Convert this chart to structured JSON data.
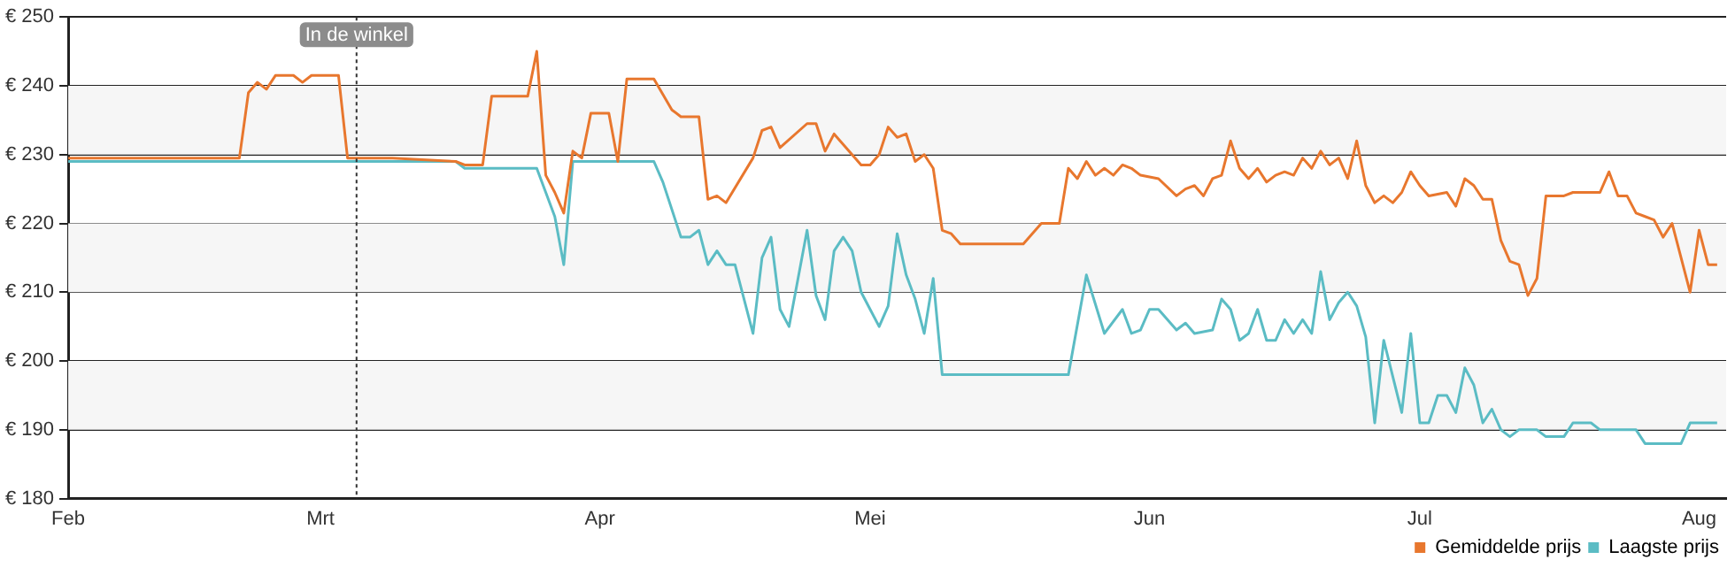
{
  "chart_data": {
    "type": "line",
    "xlim": [
      "--02-01",
      "--08-04"
    ],
    "xticks": [
      {
        "value": "--02-01",
        "label": "Feb"
      },
      {
        "value": "--03-01",
        "label": "Mrt"
      },
      {
        "value": "--04-01",
        "label": "Apr"
      },
      {
        "value": "--05-01",
        "label": "Mei"
      },
      {
        "value": "--06-01",
        "label": "Jun"
      },
      {
        "value": "--07-01",
        "label": "Jul"
      },
      {
        "value": "--08-01",
        "label": "Aug"
      }
    ],
    "ylim": [
      180,
      250
    ],
    "yticks": [
      {
        "value": 180,
        "label": "€ 180"
      },
      {
        "value": 190,
        "label": "€ 190"
      },
      {
        "value": 200,
        "label": "€ 200"
      },
      {
        "value": 210,
        "label": "€ 210"
      },
      {
        "value": 220,
        "label": "€ 220"
      },
      {
        "value": 230,
        "label": "€ 230"
      },
      {
        "value": 240,
        "label": "€ 240"
      },
      {
        "value": 250,
        "label": "€ 250"
      }
    ],
    "grid": "y",
    "legend": "bottom right",
    "marker": "none",
    "line_style": "solid",
    "ref_lines": [
      {
        "axis": "x",
        "value": "--03-05",
        "label": "In de winkel",
        "color": "#333333",
        "line_style": "dotted"
      }
    ],
    "series": [
      {
        "name": "Gemiddelde prijs",
        "color": "#e8772e",
        "x": [
          "--02-01",
          "--02-20",
          "--02-21",
          "--02-22",
          "--02-23",
          "--02-24",
          "--02-26",
          "--02-27",
          "--02-28",
          "--03-03",
          "--03-04",
          "--03-09",
          "--03-16",
          "--03-17",
          "--03-19",
          "--03-20",
          "--03-24",
          "--03-25",
          "--03-26",
          "--03-27",
          "--03-28",
          "--03-29",
          "--03-30",
          "--03-31",
          "--04-02",
          "--04-03",
          "--04-04",
          "--04-07",
          "--04-09",
          "--04-10",
          "--04-12",
          "--04-13",
          "--04-14",
          "--04-15",
          "--04-18",
          "--04-19",
          "--04-20",
          "--04-21",
          "--04-24",
          "--04-25",
          "--04-26",
          "--04-27",
          "--04-30",
          "--05-01",
          "--05-02",
          "--05-03",
          "--05-04",
          "--05-05",
          "--05-06",
          "--05-07",
          "--05-08",
          "--05-09",
          "--05-10",
          "--05-11",
          "--05-18",
          "--05-20",
          "--05-22",
          "--05-23",
          "--05-24",
          "--05-25",
          "--05-26",
          "--05-27",
          "--05-28",
          "--05-29",
          "--05-30",
          "--05-31",
          "--06-02",
          "--06-04",
          "--06-05",
          "--06-06",
          "--06-07",
          "--06-08",
          "--06-09",
          "--06-10",
          "--06-11",
          "--06-12",
          "--06-13",
          "--06-14",
          "--06-15",
          "--06-16",
          "--06-17",
          "--06-18",
          "--06-19",
          "--06-20",
          "--06-21",
          "--06-22",
          "--06-23",
          "--06-24",
          "--06-25",
          "--06-26",
          "--06-27",
          "--06-28",
          "--06-29",
          "--06-30",
          "--07-01",
          "--07-02",
          "--07-04",
          "--07-05",
          "--07-06",
          "--07-07",
          "--07-08",
          "--07-09",
          "--07-10",
          "--07-11",
          "--07-12",
          "--07-13",
          "--07-14",
          "--07-15",
          "--07-17",
          "--07-18",
          "--07-21",
          "--07-22",
          "--07-23",
          "--07-24",
          "--07-25",
          "--07-26",
          "--07-27",
          "--07-28",
          "--07-29",
          "--07-31",
          "--08-01",
          "--08-02",
          "--08-03"
        ],
        "values": [
          229.5,
          229.5,
          239,
          240.5,
          239.5,
          241.5,
          241.5,
          240.5,
          241.5,
          241.5,
          229.5,
          229.5,
          229,
          228.5,
          228.5,
          238.5,
          238.5,
          245,
          227,
          224.5,
          221.5,
          230.5,
          229.5,
          236,
          236,
          229,
          241,
          241,
          236.5,
          235.5,
          235.5,
          223.5,
          224,
          223,
          229.5,
          233.5,
          234,
          231,
          234.5,
          234.5,
          230.5,
          233,
          228.5,
          228.5,
          230,
          234,
          232.5,
          233,
          229,
          230,
          228,
          219,
          218.5,
          217,
          217,
          220,
          220,
          228,
          226.5,
          229,
          227,
          228,
          227,
          228.5,
          228,
          227,
          226.5,
          224,
          225,
          225.5,
          224,
          226.5,
          227,
          232,
          228,
          226.5,
          228,
          226,
          227,
          227.5,
          227,
          229.5,
          228,
          230.5,
          228.5,
          229.5,
          226.5,
          232,
          225.5,
          223,
          224,
          223,
          224.5,
          227.5,
          225.5,
          224,
          224.5,
          222.5,
          226.5,
          225.5,
          223.5,
          223.5,
          217.5,
          214.5,
          214,
          209.5,
          212,
          224,
          224,
          224.5,
          224.5,
          227.5,
          224,
          224,
          221.5,
          221,
          220.5,
          218,
          220,
          210,
          219,
          214,
          214
        ]
      },
      {
        "name": "Laagste prijs",
        "color": "#5bbcc4",
        "x": [
          "--02-01",
          "--03-16",
          "--03-17",
          "--03-25",
          "--03-26",
          "--03-27",
          "--03-28",
          "--03-29",
          "--04-07",
          "--04-08",
          "--04-10",
          "--04-11",
          "--04-12",
          "--04-13",
          "--04-14",
          "--04-15",
          "--04-16",
          "--04-18",
          "--04-19",
          "--04-20",
          "--04-21",
          "--04-22",
          "--04-24",
          "--04-25",
          "--04-26",
          "--04-27",
          "--04-28",
          "--04-29",
          "--04-30",
          "--05-01",
          "--05-02",
          "--05-03",
          "--05-04",
          "--05-05",
          "--05-06",
          "--05-07",
          "--05-08",
          "--05-09",
          "--05-23",
          "--05-25",
          "--05-27",
          "--05-29",
          "--05-30",
          "--05-31",
          "--06-01",
          "--06-02",
          "--06-04",
          "--06-05",
          "--06-06",
          "--06-08",
          "--06-09",
          "--06-10",
          "--06-11",
          "--06-12",
          "--06-13",
          "--06-14",
          "--06-15",
          "--06-16",
          "--06-17",
          "--06-18",
          "--06-19",
          "--06-20",
          "--06-21",
          "--06-22",
          "--06-23",
          "--06-24",
          "--06-25",
          "--06-26",
          "--06-27",
          "--06-29",
          "--06-30",
          "--07-01",
          "--07-02",
          "--07-03",
          "--07-04",
          "--07-05",
          "--07-06",
          "--07-07",
          "--07-08",
          "--07-09",
          "--07-10",
          "--07-11",
          "--07-12",
          "--07-14",
          "--07-15",
          "--07-17",
          "--07-18",
          "--07-20",
          "--07-21",
          "--07-25",
          "--07-26",
          "--07-30",
          "--07-31",
          "--08-03"
        ],
        "values": [
          229,
          229,
          228,
          228,
          224.5,
          221,
          214,
          229,
          229,
          226,
          218,
          218,
          219,
          214,
          216,
          214,
          214,
          204,
          215,
          218,
          207.5,
          205,
          219,
          209.5,
          206,
          216,
          218,
          216,
          210,
          207.5,
          205,
          208,
          218.5,
          212.5,
          209,
          204,
          212,
          198,
          198,
          212.5,
          204,
          207.5,
          204,
          204.5,
          207.5,
          207.5,
          204.5,
          205.5,
          204,
          204.5,
          209,
          207.5,
          203,
          204,
          207.5,
          203,
          203,
          206,
          204,
          206,
          204,
          213,
          206,
          208.5,
          210,
          208,
          203.5,
          191,
          203,
          192.5,
          204,
          191,
          191,
          195,
          195,
          192.5,
          199,
          196.5,
          191,
          193,
          190,
          189,
          190,
          190,
          189,
          189,
          191,
          191,
          190,
          190,
          188,
          188,
          191,
          191
        ]
      }
    ]
  }
}
